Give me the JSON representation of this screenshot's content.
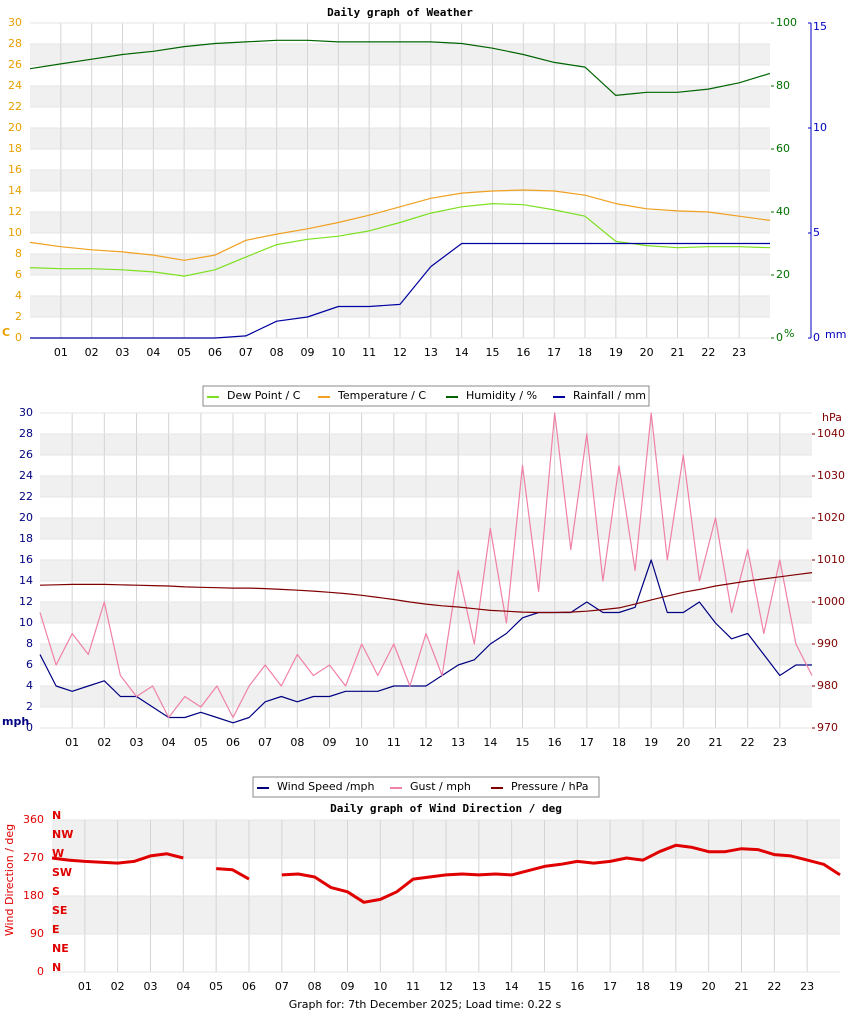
{
  "chart_data": [
    {
      "type": "line",
      "title": "Daily graph of Weather",
      "x": [
        0,
        1,
        2,
        3,
        4,
        5,
        6,
        7,
        8,
        9,
        10,
        11,
        12,
        13,
        14,
        15,
        16,
        17,
        18,
        19,
        20,
        21,
        22,
        23,
        24
      ],
      "xlim": [
        0,
        24
      ],
      "xticks": [
        {
          "value": 1,
          "label": "01"
        },
        {
          "value": 2,
          "label": "02"
        },
        {
          "value": 3,
          "label": "03"
        },
        {
          "value": 4,
          "label": "04"
        },
        {
          "value": 5,
          "label": "05"
        },
        {
          "value": 6,
          "label": "06"
        },
        {
          "value": 7,
          "label": "07"
        },
        {
          "value": 8,
          "label": "08"
        },
        {
          "value": 9,
          "label": "09"
        },
        {
          "value": 10,
          "label": "10"
        },
        {
          "value": 11,
          "label": "11"
        },
        {
          "value": 12,
          "label": "12"
        },
        {
          "value": 13,
          "label": "13"
        },
        {
          "value": 14,
          "label": "14"
        },
        {
          "value": 15,
          "label": "15"
        },
        {
          "value": 16,
          "label": "16"
        },
        {
          "value": 17,
          "label": "17"
        },
        {
          "value": 18,
          "label": "18"
        },
        {
          "value": 19,
          "label": "19"
        },
        {
          "value": 20,
          "label": "20"
        },
        {
          "value": 21,
          "label": "21"
        },
        {
          "value": 22,
          "label": "22"
        },
        {
          "value": 23,
          "label": "23"
        }
      ],
      "ylim": [
        0,
        30
      ],
      "yticks": [
        0,
        2,
        4,
        6,
        8,
        10,
        12,
        14,
        16,
        18,
        20,
        22,
        24,
        26,
        28,
        30
      ],
      "ylabel": "C",
      "ycolor": "#e8a000",
      "y2lim": [
        0,
        100
      ],
      "y2ticks": [
        0,
        20,
        40,
        60,
        80,
        100
      ],
      "y2label": "%",
      "y2color": "#007000",
      "y3lim": [
        0,
        15
      ],
      "y3ticks": [
        0,
        5,
        10,
        15
      ],
      "y3label": "mm",
      "y3color": "#0000c0",
      "series": [
        {
          "name": "Dew Point / C",
          "color": "#7ce020",
          "axis": "y",
          "values": [
            6.7,
            6.6,
            6.6,
            6.5,
            6.3,
            5.9,
            6.5,
            7.7,
            8.9,
            9.4,
            9.7,
            10.2,
            11.0,
            11.9,
            12.5,
            12.8,
            12.7,
            12.2,
            11.6,
            9.2,
            8.8,
            8.6,
            8.7,
            8.7,
            8.6
          ]
        },
        {
          "name": "Temperature / C",
          "color": "#f0a020",
          "axis": "y",
          "values": [
            9.1,
            8.7,
            8.4,
            8.2,
            7.9,
            7.4,
            7.9,
            9.3,
            9.9,
            10.4,
            11.0,
            11.7,
            12.5,
            13.3,
            13.8,
            14.0,
            14.1,
            14.0,
            13.6,
            12.8,
            12.3,
            12.1,
            12.0,
            11.6,
            11.2
          ]
        },
        {
          "name": "Humidity / %",
          "color": "#006400",
          "axis": "y2",
          "values": [
            85.5,
            87,
            88.5,
            90,
            91,
            92.5,
            93.5,
            94,
            94.5,
            94.5,
            94,
            94,
            94,
            94,
            93.5,
            92,
            90,
            87.5,
            86,
            77,
            78,
            78,
            79,
            81,
            84
          ]
        },
        {
          "name": "Rainfall / mm",
          "color": "#0000a0",
          "axis": "y3",
          "values": [
            0,
            0,
            0,
            0,
            0,
            0,
            0,
            0.1,
            0.8,
            1.0,
            1.5,
            1.5,
            1.6,
            3.4,
            4.5,
            4.5,
            4.5,
            4.5,
            4.5,
            4.5,
            4.5,
            4.5,
            4.5,
            4.5,
            4.5
          ]
        }
      ]
    },
    {
      "type": "line",
      "x": [
        0,
        0.5,
        1,
        1.5,
        2,
        2.5,
        3,
        3.5,
        4,
        4.5,
        5,
        5.5,
        6,
        6.5,
        7,
        7.5,
        8,
        8.5,
        9,
        9.5,
        10,
        10.5,
        11,
        11.5,
        12,
        12.5,
        13,
        13.5,
        14,
        14.5,
        15,
        15.5,
        16,
        16.5,
        17,
        17.5,
        18,
        18.5,
        19,
        19.5,
        20,
        20.5,
        21,
        21.5,
        22,
        22.5,
        23,
        23.5,
        24
      ],
      "xlim": [
        0,
        24
      ],
      "xticks": [
        {
          "value": 1,
          "label": "01"
        },
        {
          "value": 2,
          "label": "02"
        },
        {
          "value": 3,
          "label": "03"
        },
        {
          "value": 4,
          "label": "04"
        },
        {
          "value": 5,
          "label": "05"
        },
        {
          "value": 6,
          "label": "06"
        },
        {
          "value": 7,
          "label": "07"
        },
        {
          "value": 8,
          "label": "08"
        },
        {
          "value": 9,
          "label": "09"
        },
        {
          "value": 10,
          "label": "10"
        },
        {
          "value": 11,
          "label": "11"
        },
        {
          "value": 12,
          "label": "12"
        },
        {
          "value": 13,
          "label": "13"
        },
        {
          "value": 14,
          "label": "14"
        },
        {
          "value": 15,
          "label": "15"
        },
        {
          "value": 16,
          "label": "16"
        },
        {
          "value": 17,
          "label": "17"
        },
        {
          "value": 18,
          "label": "18"
        },
        {
          "value": 19,
          "label": "19"
        },
        {
          "value": 20,
          "label": "20"
        },
        {
          "value": 21,
          "label": "21"
        },
        {
          "value": 22,
          "label": "22"
        },
        {
          "value": 23,
          "label": "23"
        }
      ],
      "ylim": [
        0,
        30
      ],
      "yticks": [
        0,
        2,
        4,
        6,
        8,
        10,
        12,
        14,
        16,
        18,
        20,
        22,
        24,
        26,
        28,
        30
      ],
      "ylabel": "mph",
      "ycolor": "#000080",
      "y2lim": [
        970,
        1045
      ],
      "y2ticks": [
        970,
        980,
        990,
        1000,
        1010,
        1020,
        1030,
        1040
      ],
      "y2label": "hPa",
      "y2color": "#800000",
      "series": [
        {
          "name": "Wind Speed /mph",
          "color": "#000080",
          "axis": "y",
          "values": [
            7,
            4,
            3.5,
            4,
            4.5,
            3,
            3,
            2,
            1,
            1,
            1.5,
            1,
            0.5,
            1,
            2.5,
            3,
            2.5,
            3,
            3,
            3.5,
            3.5,
            3.5,
            4,
            4,
            4,
            5,
            6,
            6.5,
            8,
            9,
            10.5,
            11,
            11,
            11,
            12,
            11,
            11,
            11.5,
            16,
            11,
            11,
            12,
            10,
            8.5,
            9,
            7,
            5,
            6,
            6
          ]
        },
        {
          "name": "Gust / mph",
          "color": "#f080a8",
          "axis": "y",
          "values": [
            11,
            6,
            9,
            7,
            12,
            5,
            3,
            4,
            1,
            3,
            2,
            4,
            1,
            4,
            6,
            4,
            7,
            5,
            6,
            4,
            8,
            5,
            8,
            4,
            9,
            5,
            15,
            8,
            19,
            10,
            25,
            13,
            30,
            17,
            28,
            14,
            25,
            15,
            30,
            16,
            26,
            14,
            20,
            11,
            17,
            9,
            16,
            8,
            5
          ]
        },
        {
          "name": "Pressure / hPa",
          "color": "#800000",
          "axis": "y2",
          "values": [
            1004,
            1004.1,
            1004.2,
            1004.2,
            1004.2,
            1004.1,
            1004,
            1003.9,
            1003.8,
            1003.6,
            1003.5,
            1003.4,
            1003.3,
            1003.3,
            1003.2,
            1003,
            1002.8,
            1002.6,
            1002.3,
            1002,
            1001.6,
            1001.1,
            1000.6,
            1000,
            999.5,
            999.1,
            998.8,
            998.4,
            998,
            997.8,
            997.6,
            997.5,
            997.5,
            997.6,
            997.8,
            998.2,
            998.6,
            999.5,
            1000.5,
            1001.4,
            1002.3,
            1003,
            1003.8,
            1004.4,
            1005,
            1005.5,
            1006,
            1006.5,
            1007
          ]
        }
      ]
    },
    {
      "type": "line",
      "title": "Daily graph of Wind Direction / deg",
      "x": [
        0,
        0.5,
        1,
        1.5,
        2,
        2.5,
        3,
        3.5,
        4,
        4.5,
        5,
        5.5,
        6,
        6.5,
        7,
        7.5,
        8,
        8.5,
        9,
        9.5,
        10,
        10.5,
        11,
        11.5,
        12,
        12.5,
        13,
        13.5,
        14,
        14.5,
        15,
        15.5,
        16,
        16.5,
        17,
        17.5,
        18,
        18.5,
        19,
        19.5,
        20,
        20.5,
        21,
        21.5,
        22,
        22.5,
        23,
        23.5,
        24
      ],
      "xlim": [
        0,
        24
      ],
      "xticks": [
        {
          "value": 1,
          "label": "01"
        },
        {
          "value": 2,
          "label": "02"
        },
        {
          "value": 3,
          "label": "03"
        },
        {
          "value": 4,
          "label": "04"
        },
        {
          "value": 5,
          "label": "05"
        },
        {
          "value": 6,
          "label": "06"
        },
        {
          "value": 7,
          "label": "07"
        },
        {
          "value": 8,
          "label": "08"
        },
        {
          "value": 9,
          "label": "09"
        },
        {
          "value": 10,
          "label": "10"
        },
        {
          "value": 11,
          "label": "11"
        },
        {
          "value": 12,
          "label": "12"
        },
        {
          "value": 13,
          "label": "13"
        },
        {
          "value": 14,
          "label": "14"
        },
        {
          "value": 15,
          "label": "15"
        },
        {
          "value": 16,
          "label": "16"
        },
        {
          "value": 17,
          "label": "17"
        },
        {
          "value": 18,
          "label": "18"
        },
        {
          "value": 19,
          "label": "19"
        },
        {
          "value": 20,
          "label": "20"
        },
        {
          "value": 21,
          "label": "21"
        },
        {
          "value": 22,
          "label": "22"
        },
        {
          "value": 23,
          "label": "23"
        }
      ],
      "ylim": [
        0,
        360
      ],
      "yticks": [
        0,
        90,
        180,
        270,
        360
      ],
      "ylabel": "Wind Direction / deg",
      "ycolor": "#e00000",
      "compass": [
        {
          "value": 360,
          "label": "N"
        },
        {
          "value": 315,
          "label": "NW"
        },
        {
          "value": 270,
          "label": "W"
        },
        {
          "value": 225,
          "label": "SW"
        },
        {
          "value": 180,
          "label": "S"
        },
        {
          "value": 135,
          "label": "SE"
        },
        {
          "value": 90,
          "label": "E"
        },
        {
          "value": 45,
          "label": "NE"
        },
        {
          "value": 0,
          "label": "N"
        }
      ],
      "series": [
        {
          "color": "#e00000",
          "axis": "y",
          "values": [
            270,
            265,
            262,
            260,
            258,
            262,
            275,
            280,
            270,
            null,
            245,
            242,
            220,
            null,
            230,
            232,
            225,
            200,
            190,
            165,
            172,
            190,
            220,
            225,
            230,
            232,
            230,
            232,
            230,
            240,
            250,
            255,
            262,
            258,
            262,
            270,
            265,
            285,
            300,
            295,
            285,
            285,
            292,
            290,
            278,
            275,
            265,
            255,
            230
          ]
        }
      ]
    }
  ],
  "footer": "Graph for: 7th December 2025; Load time: 0.22 s"
}
